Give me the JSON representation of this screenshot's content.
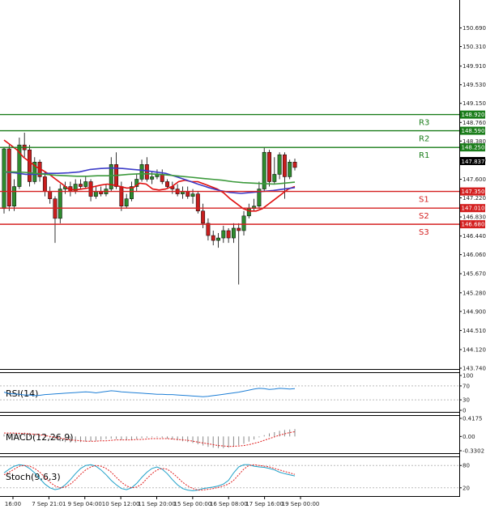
{
  "chart_data": {
    "type": "candlestick",
    "price_axis": {
      "range": [
        143.74,
        150.93
      ],
      "ticks": [
        "150.690",
        "150.310",
        "149.910",
        "149.530",
        "149.150",
        "148.760",
        "148.380",
        "147.990",
        "147.600",
        "147.220",
        "146.830",
        "146.440",
        "146.060",
        "145.670",
        "145.280",
        "144.900",
        "144.510",
        "144.120",
        "143.740"
      ]
    },
    "time_labels": [
      "16:00",
      "7 Sep 21:01",
      "9 Sep 04:00",
      "10 Sep 12:00",
      "11 Sep 20:00",
      "15 Sep 00:00",
      "16 Sep 08:00",
      "17 Sep 16:00",
      "19 Sep 00:00"
    ],
    "current_price": "147.837",
    "levels": [
      {
        "name": "R3",
        "value": 148.92,
        "label": "148.920",
        "color": "#1a7d1a"
      },
      {
        "name": "R2",
        "value": 148.59,
        "label": "148.590",
        "color": "#1a7d1a"
      },
      {
        "name": "R1",
        "value": 148.25,
        "label": "148.250",
        "color": "#1a7d1a"
      },
      {
        "name": "S1",
        "value": 147.35,
        "label": "147.350",
        "color": "#d42020"
      },
      {
        "name": "S2",
        "value": 147.01,
        "label": "147.010",
        "color": "#d42020"
      },
      {
        "name": "S3",
        "value": 146.68,
        "label": "146.680",
        "color": "#d42020"
      }
    ],
    "candles": [
      [
        147.0,
        148.22,
        148.25,
        146.9
      ],
      [
        148.22,
        147.05,
        148.3,
        146.95
      ],
      [
        147.05,
        147.45,
        147.6,
        146.95
      ],
      [
        147.45,
        148.3,
        148.45,
        147.4
      ],
      [
        148.3,
        148.2,
        148.55,
        148.05
      ],
      [
        148.2,
        147.55,
        148.3,
        147.45
      ],
      [
        147.55,
        147.95,
        148.05,
        147.5
      ],
      [
        147.95,
        147.65,
        148.0,
        147.55
      ],
      [
        147.65,
        147.35,
        147.75,
        147.25
      ],
      [
        147.35,
        147.2,
        147.45,
        147.1
      ],
      [
        147.2,
        146.8,
        147.25,
        146.3
      ],
      [
        146.8,
        147.4,
        147.5,
        146.7
      ],
      [
        147.4,
        147.45,
        147.55,
        147.3
      ],
      [
        147.45,
        147.35,
        147.55,
        147.25
      ],
      [
        147.35,
        147.5,
        147.6,
        147.3
      ],
      [
        147.5,
        147.45,
        147.6,
        147.4
      ],
      [
        147.45,
        147.55,
        147.65,
        147.4
      ],
      [
        147.55,
        147.25,
        147.6,
        147.15
      ],
      [
        147.25,
        147.35,
        147.45,
        147.2
      ],
      [
        147.35,
        147.3,
        147.45,
        147.25
      ],
      [
        147.3,
        147.4,
        147.5,
        147.25
      ],
      [
        147.4,
        147.9,
        148.05,
        147.35
      ],
      [
        147.9,
        147.45,
        148.15,
        147.4
      ],
      [
        147.45,
        147.05,
        147.55,
        146.95
      ],
      [
        147.05,
        147.2,
        147.3,
        147.0
      ],
      [
        147.2,
        147.45,
        147.55,
        147.15
      ],
      [
        147.45,
        147.6,
        147.7,
        147.35
      ],
      [
        147.6,
        147.9,
        148.0,
        147.55
      ],
      [
        147.9,
        147.6,
        148.05,
        147.55
      ],
      [
        147.6,
        147.65,
        147.75,
        147.5
      ],
      [
        147.65,
        147.7,
        147.8,
        147.6
      ],
      [
        147.7,
        147.55,
        147.8,
        147.5
      ],
      [
        147.55,
        147.45,
        147.6,
        147.4
      ],
      [
        147.45,
        147.4,
        147.55,
        147.3
      ],
      [
        147.4,
        147.3,
        147.5,
        147.25
      ],
      [
        147.3,
        147.35,
        147.45,
        147.2
      ],
      [
        147.35,
        147.25,
        147.45,
        147.2
      ],
      [
        147.25,
        147.3,
        147.4,
        147.1
      ],
      [
        147.3,
        146.95,
        147.35,
        146.9
      ],
      [
        146.95,
        146.7,
        147.1,
        146.6
      ],
      [
        146.7,
        146.45,
        146.8,
        146.35
      ],
      [
        146.45,
        146.35,
        146.55,
        146.25
      ],
      [
        146.35,
        146.4,
        146.5,
        146.2
      ],
      [
        146.4,
        146.55,
        146.65,
        146.3
      ],
      [
        146.55,
        146.4,
        146.6,
        146.3
      ],
      [
        146.4,
        146.6,
        146.7,
        146.3
      ],
      [
        146.6,
        146.55,
        146.7,
        145.45
      ],
      [
        146.55,
        146.85,
        146.95,
        146.45
      ],
      [
        146.85,
        147.0,
        147.1,
        146.8
      ],
      [
        147.0,
        147.05,
        147.2,
        146.95
      ],
      [
        147.05,
        147.4,
        147.55,
        147.0
      ],
      [
        147.4,
        148.15,
        148.25,
        147.35
      ],
      [
        148.15,
        147.55,
        148.2,
        147.45
      ],
      [
        147.55,
        147.7,
        148.05,
        147.5
      ],
      [
        147.7,
        148.1,
        148.15,
        147.6
      ],
      [
        148.1,
        147.65,
        148.15,
        147.2
      ],
      [
        147.65,
        147.95,
        148.0,
        147.6
      ],
      [
        147.95,
        147.84,
        148.02,
        147.78
      ]
    ],
    "moving_averages": [
      {
        "color": "#e01010",
        "values": [
          148.4,
          148.3,
          148.2,
          148.05,
          147.95,
          147.85,
          147.78,
          147.7,
          147.6,
          147.5,
          147.4,
          147.38,
          147.4,
          147.42,
          147.45,
          147.48,
          147.5,
          147.48,
          147.45,
          147.42,
          147.43,
          147.52,
          147.5,
          147.4,
          147.38,
          147.4,
          147.45,
          147.55,
          147.58,
          147.55,
          147.55,
          147.5,
          147.45,
          147.4,
          147.32,
          147.2,
          147.1,
          147.0,
          146.95,
          146.95,
          147.0,
          147.1,
          147.2,
          147.3,
          147.4,
          147.45
        ]
      },
      {
        "color": "#3c3cc8",
        "values": [
          147.75,
          147.73,
          147.7,
          147.7,
          147.72,
          147.72,
          147.73,
          147.75,
          147.8,
          147.82,
          147.83,
          147.82,
          147.8,
          147.78,
          147.75,
          147.72,
          147.65,
          147.58,
          147.5,
          147.43,
          147.37,
          147.33,
          147.31,
          147.33,
          147.35,
          147.37,
          147.4,
          147.43
        ]
      },
      {
        "color": "#3c9a3c",
        "values": [
          147.75,
          147.75,
          147.74,
          147.72,
          147.7,
          147.68,
          147.67,
          147.66,
          147.66,
          147.67,
          147.67,
          147.68,
          147.7,
          147.71,
          147.71,
          147.7,
          147.68,
          147.66,
          147.64,
          147.62,
          147.6,
          147.58,
          147.55,
          147.53,
          147.52,
          147.51,
          147.5,
          147.52,
          147.54
        ]
      }
    ],
    "indicators": [
      {
        "title": "RSI(14)",
        "ticks": [
          "100",
          "70",
          "30",
          "0"
        ],
        "range": [
          0,
          100
        ],
        "values": [
          52,
          48,
          47,
          46,
          44,
          44,
          42,
          43,
          45,
          46,
          47,
          48,
          49,
          50,
          51,
          52,
          53,
          52,
          50,
          52,
          54,
          56,
          55,
          53,
          52,
          51,
          50,
          49,
          48,
          47,
          46,
          46,
          45,
          45,
          44,
          43,
          42,
          41,
          40,
          39,
          40,
          42,
          44,
          46,
          48,
          50,
          52,
          55,
          58,
          61,
          63,
          62,
          60,
          61,
          63,
          62,
          61,
          62
        ]
      },
      {
        "title": "MACD(12,26,9)",
        "ticks": [
          "0.4175",
          "0.00",
          "-0.3302"
        ],
        "range": [
          -0.3302,
          0.4175
        ],
        "hist": [
          0.05,
          0.07,
          0.08,
          0.09,
          0.09,
          0.08,
          0.06,
          0.03,
          0.0,
          -0.04,
          -0.08,
          -0.11,
          -0.13,
          -0.14,
          -0.14,
          -0.13,
          -0.12,
          -0.11,
          -0.1,
          -0.08,
          -0.06,
          -0.05,
          -0.06,
          -0.08,
          -0.09,
          -0.08,
          -0.06,
          -0.04,
          -0.03,
          -0.02,
          -0.02,
          -0.03,
          -0.05,
          -0.07,
          -0.09,
          -0.11,
          -0.13,
          -0.15,
          -0.18,
          -0.21,
          -0.24,
          -0.26,
          -0.27,
          -0.27,
          -0.26,
          -0.23,
          -0.2,
          -0.17,
          -0.12,
          -0.07,
          -0.02,
          0.03,
          0.07,
          0.1,
          0.13,
          0.15,
          0.16,
          0.17
        ],
        "signal": [
          0.08,
          0.08,
          0.08,
          0.07,
          0.07,
          0.06,
          0.05,
          0.04,
          0.02,
          0.0,
          -0.02,
          -0.04,
          -0.06,
          -0.08,
          -0.09,
          -0.1,
          -0.11,
          -0.11,
          -0.11,
          -0.1,
          -0.1,
          -0.09,
          -0.08,
          -0.08,
          -0.08,
          -0.08,
          -0.07,
          -0.07,
          -0.06,
          -0.05,
          -0.05,
          -0.05,
          -0.05,
          -0.06,
          -0.07,
          -0.08,
          -0.09,
          -0.11,
          -0.13,
          -0.15,
          -0.17,
          -0.19,
          -0.21,
          -0.22,
          -0.23,
          -0.23,
          -0.22,
          -0.21,
          -0.19,
          -0.16,
          -0.13,
          -0.09,
          -0.05,
          -0.01,
          0.03,
          0.06,
          0.09,
          0.11
        ]
      },
      {
        "title": "Stoch(9,6,3)",
        "ticks": [
          "80",
          "20"
        ],
        "range": [
          0,
          100
        ],
        "k": [
          60,
          70,
          78,
          82,
          80,
          72,
          60,
          45,
          30,
          20,
          15,
          18,
          28,
          42,
          58,
          72,
          80,
          82,
          78,
          68,
          55,
          40,
          28,
          18,
          15,
          20,
          32,
          48,
          62,
          72,
          76,
          70,
          58,
          42,
          28,
          18,
          14,
          12,
          14,
          18,
          20,
          22,
          25,
          30,
          40,
          60,
          76,
          82,
          82,
          78,
          76,
          75,
          72,
          68,
          62,
          58,
          55,
          52
        ],
        "d": [
          55,
          62,
          70,
          78,
          80,
          78,
          72,
          62,
          48,
          35,
          25,
          20,
          22,
          30,
          42,
          56,
          68,
          76,
          80,
          78,
          72,
          62,
          48,
          35,
          25,
          20,
          22,
          30,
          45,
          58,
          68,
          72,
          70,
          60,
          48,
          35,
          25,
          18,
          14,
          14,
          16,
          18,
          21,
          25,
          30,
          40,
          55,
          70,
          80,
          82,
          80,
          78,
          76,
          72,
          68,
          64,
          60,
          56
        ]
      }
    ]
  }
}
